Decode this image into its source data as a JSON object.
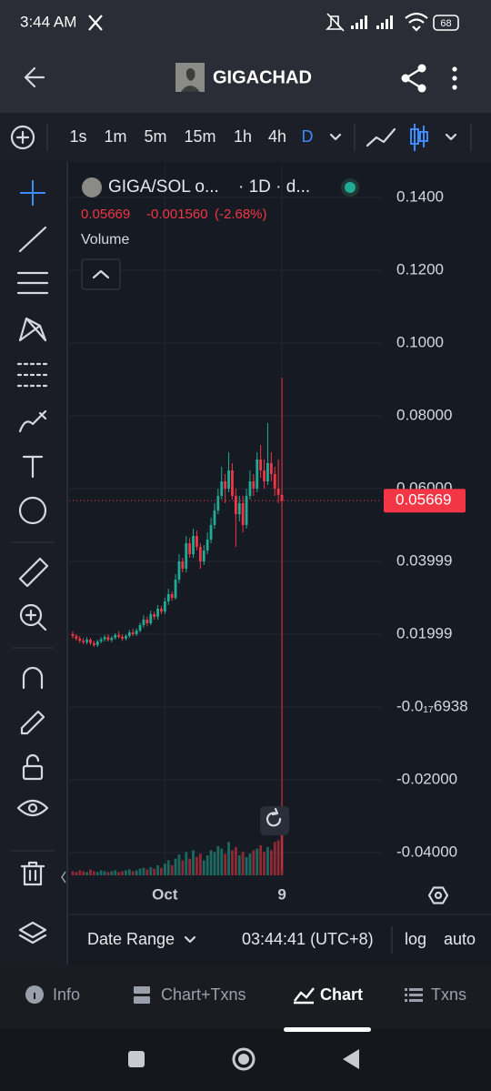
{
  "status_bar": {
    "time": "3:44 AM",
    "battery": "68"
  },
  "header": {
    "title": "GIGACHAD"
  },
  "toolbar": {
    "intervals": [
      "1s",
      "1m",
      "5m",
      "15m",
      "1h",
      "4h",
      "D"
    ]
  },
  "legend": {
    "symbol": "GIGA/SOL o...",
    "period": "· 1D · d...",
    "price": "0.05669",
    "change": "-0.001560",
    "change_pct": "(-2.68%)"
  },
  "footer": {
    "date_range": "Date Range",
    "clock": "03:44:41 (UTC+8)",
    "log": "log",
    "auto": "auto"
  },
  "tabs": [
    "Info",
    "Chart+Txns",
    "Chart",
    "Txns"
  ],
  "chart_data": {
    "type": "candlestick",
    "categories": [
      null,
      null,
      null,
      null,
      null,
      null,
      null,
      null,
      null,
      null,
      null,
      null,
      null,
      null,
      null,
      null,
      null,
      null,
      null,
      null,
      null,
      null,
      null,
      null,
      null,
      null,
      "Oct",
      null,
      null,
      null,
      null,
      null,
      null,
      null,
      null,
      null,
      null,
      null,
      null,
      null,
      null,
      null,
      null,
      null,
      null,
      null,
      null,
      null,
      null,
      null,
      null,
      null,
      null,
      null,
      null,
      null,
      null,
      null,
      null,
      "9"
    ],
    "open": [
      0.02,
      0.0195,
      0.0188,
      0.0182,
      0.0178,
      0.0185,
      0.0176,
      0.017,
      0.018,
      0.0186,
      0.0192,
      0.0184,
      0.019,
      0.0198,
      0.0193,
      0.0188,
      0.0195,
      0.0205,
      0.02,
      0.021,
      0.0225,
      0.024,
      0.023,
      0.0255,
      0.0248,
      0.027,
      0.0262,
      0.029,
      0.031,
      0.03,
      0.035,
      0.04,
      0.038,
      0.045,
      0.042,
      0.047,
      0.044,
      0.04,
      0.043,
      0.046,
      0.05,
      0.054,
      0.058,
      0.062,
      0.06,
      0.065,
      0.058,
      0.053,
      0.056,
      0.05,
      0.058,
      0.062,
      0.06,
      0.068,
      0.065,
      0.062,
      0.067,
      0.064,
      0.06,
      0.0583
    ],
    "high": [
      0.0208,
      0.02,
      0.0195,
      0.019,
      0.0192,
      0.019,
      0.0182,
      0.0185,
      0.0192,
      0.0198,
      0.02,
      0.0195,
      0.0203,
      0.0208,
      0.02,
      0.02,
      0.0212,
      0.0215,
      0.0216,
      0.0232,
      0.0252,
      0.0248,
      0.0265,
      0.0262,
      0.028,
      0.0278,
      0.03,
      0.0325,
      0.0318,
      0.0365,
      0.042,
      0.041,
      0.047,
      0.0465,
      0.049,
      0.0485,
      0.045,
      0.0445,
      0.048,
      0.052,
      0.056,
      0.06,
      0.066,
      0.064,
      0.07,
      0.067,
      0.06,
      0.058,
      0.058,
      0.06,
      0.065,
      0.064,
      0.07,
      0.072,
      0.068,
      0.078,
      0.07,
      0.066,
      0.068,
      0.0905
    ],
    "low": [
      0.0188,
      0.0182,
      0.0176,
      0.0172,
      0.0172,
      0.017,
      0.0165,
      0.0165,
      0.0175,
      0.018,
      0.018,
      0.0178,
      0.0185,
      0.0188,
      0.0182,
      0.0183,
      0.019,
      0.0195,
      0.0195,
      0.0205,
      0.0218,
      0.0222,
      0.0225,
      0.024,
      0.024,
      0.0255,
      0.0255,
      0.028,
      0.0292,
      0.0295,
      0.034,
      0.037,
      0.037,
      0.041,
      0.041,
      0.043,
      0.038,
      0.039,
      0.042,
      0.045,
      0.049,
      0.053,
      0.057,
      0.056,
      0.059,
      0.057,
      0.044,
      0.051,
      0.048,
      0.049,
      0.057,
      0.058,
      0.059,
      0.063,
      0.06,
      0.061,
      0.062,
      0.058,
      0.056,
      -0.045
    ],
    "close": [
      0.0195,
      0.0188,
      0.0182,
      0.0178,
      0.0185,
      0.0176,
      0.017,
      0.018,
      0.0186,
      0.0192,
      0.0184,
      0.019,
      0.0198,
      0.0193,
      0.0188,
      0.0195,
      0.0205,
      0.02,
      0.021,
      0.0225,
      0.024,
      0.023,
      0.0255,
      0.0248,
      0.027,
      0.0262,
      0.029,
      0.031,
      0.03,
      0.035,
      0.04,
      0.038,
      0.045,
      0.042,
      0.047,
      0.044,
      0.04,
      0.043,
      0.046,
      0.05,
      0.054,
      0.058,
      0.062,
      0.06,
      0.065,
      0.058,
      0.053,
      0.056,
      0.05,
      0.058,
      0.062,
      0.06,
      0.068,
      0.065,
      0.062,
      0.067,
      0.064,
      0.06,
      0.0583,
      0.05669
    ],
    "volume": {
      "name": "Volume",
      "values": [
        5,
        4,
        6,
        5,
        4,
        7,
        5,
        4,
        6,
        5,
        4,
        5,
        6,
        4,
        5,
        6,
        7,
        5,
        6,
        8,
        9,
        7,
        10,
        8,
        12,
        9,
        14,
        18,
        12,
        20,
        25,
        18,
        28,
        20,
        30,
        22,
        26,
        18,
        24,
        30,
        28,
        35,
        32,
        26,
        40,
        30,
        34,
        24,
        28,
        22,
        26,
        30,
        32,
        36,
        28,
        34,
        30,
        40,
        42,
        60
      ]
    },
    "up_color": "#22ab94",
    "down_color": "#f23645",
    "last_price": 0.05669,
    "ylim": [
      -0.04625,
      0.14925
    ],
    "yticks": [
      {
        "value": 0.14,
        "label": "0.1400"
      },
      {
        "value": 0.12,
        "label": "0.1200"
      },
      {
        "value": 0.1,
        "label": "0.1000"
      },
      {
        "value": 0.08,
        "label": "0.08000"
      },
      {
        "value": 0.06,
        "label": "0.06000"
      },
      0.03999,
      0.01999,
      {
        "value": -6.938e-20,
        "label": "-0.0₁₇6938"
      },
      {
        "value": -0.02,
        "label": "-0.02000"
      },
      {
        "value": -0.04,
        "label": "-0.04000"
      }
    ],
    "grid": true
  }
}
